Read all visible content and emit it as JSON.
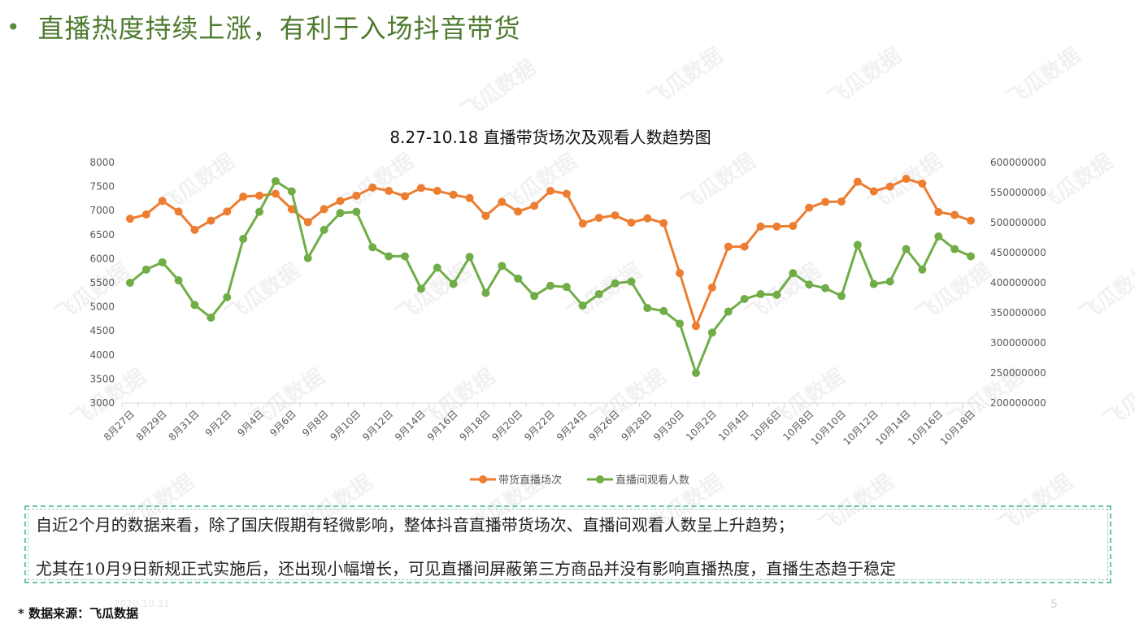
{
  "header": {
    "bullet": "•",
    "title": "直播热度持续上涨，有利于入场抖音带货"
  },
  "watermark_text": "飞瓜数据",
  "chart_data": {
    "type": "line",
    "title": "8.27-10.18 直播带货场次及观看人数趋势图",
    "x": [
      "8月27日",
      "8月28日",
      "8月29日",
      "8月30日",
      "8月31日",
      "9月1日",
      "9月2日",
      "9月3日",
      "9月4日",
      "9月5日",
      "9月6日",
      "9月7日",
      "9月8日",
      "9月9日",
      "9月10日",
      "9月11日",
      "9月12日",
      "9月13日",
      "9月14日",
      "9月15日",
      "9月16日",
      "9月17日",
      "9月18日",
      "9月19日",
      "9月20日",
      "9月21日",
      "9月22日",
      "9月23日",
      "9月24日",
      "9月25日",
      "9月26日",
      "9月27日",
      "9月28日",
      "9月29日",
      "9月30日",
      "10月1日",
      "10月2日",
      "10月3日",
      "10月4日",
      "10月5日",
      "10月6日",
      "10月7日",
      "10月8日",
      "10月9日",
      "10月10日",
      "10月11日",
      "10月12日",
      "10月13日",
      "10月14日",
      "10月15日",
      "10月16日",
      "10月17日",
      "10月18日"
    ],
    "x_tick_labels": [
      "8月27日",
      "8月29日",
      "8月31日",
      "9月2日",
      "9月4日",
      "9月6日",
      "9月8日",
      "9月10日",
      "9月12日",
      "9月14日",
      "9月16日",
      "9月18日",
      "9月20日",
      "9月22日",
      "9月24日",
      "9月26日",
      "9月28日",
      "9月30日",
      "10月2日",
      "10月4日",
      "10月6日",
      "10月8日",
      "10月10日",
      "10月12日",
      "10月14日",
      "10月16日",
      "10月18日"
    ],
    "y_left": {
      "min": 3000,
      "max": 8000,
      "ticks": [
        "3000",
        "3500",
        "4000",
        "4500",
        "5000",
        "5500",
        "6000",
        "6500",
        "7000",
        "7500",
        "8000"
      ]
    },
    "y_right": {
      "min": 200000000,
      "max": 600000000,
      "ticks": [
        "200000000",
        "250000000",
        "300000000",
        "350000000",
        "400000000",
        "450000000",
        "500000000",
        "550000000",
        "600000000"
      ]
    },
    "series": [
      {
        "name": "带货直播场次",
        "axis": "left",
        "color": "#ed7d31",
        "values": [
          6830,
          6920,
          7200,
          6980,
          6600,
          6790,
          6980,
          7290,
          7310,
          7350,
          7030,
          6760,
          7030,
          7200,
          7310,
          7480,
          7410,
          7300,
          7470,
          7410,
          7330,
          7260,
          6890,
          7180,
          6980,
          7100,
          7410,
          7350,
          6730,
          6850,
          6900,
          6750,
          6840,
          6740,
          5700,
          4600,
          5400,
          6250,
          6250,
          6670,
          6670,
          6680,
          7060,
          7180,
          7190,
          7600,
          7400,
          7500,
          7660,
          7560,
          6970,
          6910,
          6790
        ]
      },
      {
        "name": "直播间观看人数",
        "axis": "right",
        "color": "#70ad47",
        "values": [
          400000000,
          422000000,
          434000000,
          404000000,
          363000000,
          342000000,
          376000000,
          473000000,
          518000000,
          569000000,
          552000000,
          441000000,
          488000000,
          516000000,
          518000000,
          459000000,
          444000000,
          444000000,
          390000000,
          425000000,
          398000000,
          443000000,
          383000000,
          428000000,
          407000000,
          378000000,
          395000000,
          393000000,
          362000000,
          381000000,
          399000000,
          402000000,
          358000000,
          353000000,
          332000000,
          250000000,
          317000000,
          352000000,
          373000000,
          381000000,
          380000000,
          416000000,
          397000000,
          391000000,
          378000000,
          463000000,
          398000000,
          402000000,
          456000000,
          422000000,
          477000000,
          456000000,
          444000000
        ]
      }
    ]
  },
  "notes": {
    "line1": "自近2个月的数据来看，除了国庆假期有轻微影响，整体抖音直播带货场次、直播间观看人数呈上升趋势；",
    "line2": "尤其在10月9日新规正式实施后，还出现小幅增长，可见直播间屏蔽第三方商品并没有影响直播热度，直播生态趋于稳定"
  },
  "footer": {
    "source": "* 数据来源：飞瓜数据",
    "date": "2020.10.21",
    "page": "5"
  }
}
